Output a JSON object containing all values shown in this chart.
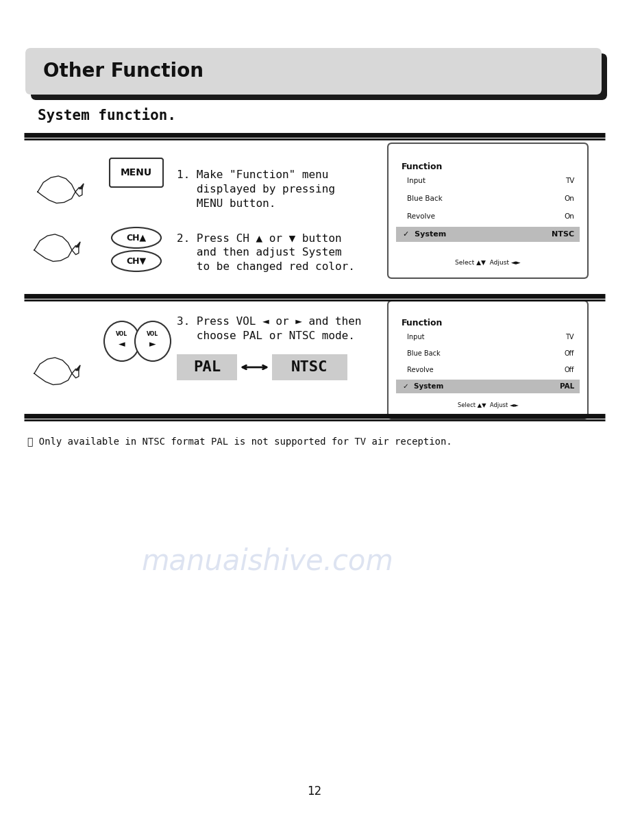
{
  "title": "Other Function",
  "subtitle": "System function.",
  "section1_text": "1. Make \"Function\" menu\n   displayed by pressing\n   MENU button.",
  "section2_text": "2. Press CH ▲ or ▼ button\n   and then adjust System\n   to be changed red color.",
  "section3_text": "3. Press VOL ◄ or ► and then\n   choose PAL or NTSC mode.",
  "note_text": "※ Only available in NTSC format PAL is not supported for TV air reception.",
  "page_number": "12",
  "func_box1": {
    "title": "Function",
    "rows": [
      [
        "Input",
        "TV"
      ],
      [
        "Blue Back",
        "On"
      ],
      [
        "Revolve",
        "On"
      ],
      [
        "System",
        "NTSC"
      ]
    ],
    "footer": "Select ▲▼  Adjust ◄►",
    "highlight_row": 3
  },
  "func_box2": {
    "title": "Function",
    "rows": [
      [
        "Input",
        "TV"
      ],
      [
        "Blue Back",
        "Off"
      ],
      [
        "Revolve",
        "Off"
      ],
      [
        "System",
        "PAL"
      ]
    ],
    "footer": "Select ▲▼  Adjust ◄►",
    "highlight_row": 3
  },
  "watermark_text": "manuaishive.com",
  "bg_color": "#ffffff"
}
